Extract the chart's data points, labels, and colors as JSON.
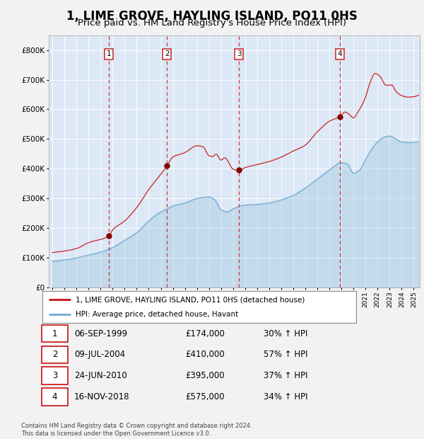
{
  "title": "1, LIME GROVE, HAYLING ISLAND, PO11 0HS",
  "subtitle": "Price paid vs. HM Land Registry's House Price Index (HPI)",
  "title_fontsize": 12,
  "subtitle_fontsize": 9.5,
  "yticks": [
    0,
    100000,
    200000,
    300000,
    400000,
    500000,
    600000,
    700000,
    800000
  ],
  "ytick_labels": [
    "£0",
    "£100K",
    "£200K",
    "£300K",
    "£400K",
    "£500K",
    "£600K",
    "£700K",
    "£800K"
  ],
  "xlim_start": 1994.7,
  "xlim_end": 2025.5,
  "ylim_min": 0,
  "ylim_max": 850000,
  "background_color": "#dce8f5",
  "fig_bg_color": "#f2f2f2",
  "red_line_color": "#cc2222",
  "blue_line_color": "#7ab0d4",
  "sale_marker_color": "#880000",
  "dashed_line_color": "#cc2222",
  "grid_color": "#ffffff",
  "sales": [
    {
      "date_year": 1999.67,
      "price": 174000,
      "label": "1"
    },
    {
      "date_year": 2004.52,
      "price": 410000,
      "label": "2"
    },
    {
      "date_year": 2010.48,
      "price": 395000,
      "label": "3"
    },
    {
      "date_year": 2018.87,
      "price": 575000,
      "label": "4"
    }
  ],
  "legend_entries": [
    "1, LIME GROVE, HAYLING ISLAND, PO11 0HS (detached house)",
    "HPI: Average price, detached house, Havant"
  ],
  "table_rows": [
    {
      "num": "1",
      "date": "06-SEP-1999",
      "price": "£174,000",
      "change": "30% ↑ HPI"
    },
    {
      "num": "2",
      "date": "09-JUL-2004",
      "price": "£410,000",
      "change": "57% ↑ HPI"
    },
    {
      "num": "3",
      "date": "24-JUN-2010",
      "price": "£395,000",
      "change": "37% ↑ HPI"
    },
    {
      "num": "4",
      "date": "16-NOV-2018",
      "price": "£575,000",
      "change": "34% ↑ HPI"
    }
  ],
  "footer": "Contains HM Land Registry data © Crown copyright and database right 2024.\nThis data is licensed under the Open Government Licence v3.0.",
  "hpi_waypoints_x": [
    1995,
    1996,
    1997,
    1998,
    1999,
    2000,
    2001,
    2002,
    2003,
    2004,
    2004.5,
    2005,
    2006,
    2007,
    2008,
    2008.5,
    2009,
    2009.5,
    2010,
    2011,
    2012,
    2013,
    2014,
    2015,
    2016,
    2017,
    2018,
    2019,
    2019.5,
    2020,
    2020.5,
    2021,
    2021.5,
    2022,
    2022.5,
    2023,
    2023.5,
    2024,
    2024.5,
    2025.3
  ],
  "hpi_waypoints_y": [
    88000,
    93000,
    100000,
    110000,
    120000,
    135000,
    160000,
    185000,
    225000,
    255000,
    265000,
    275000,
    285000,
    300000,
    305000,
    295000,
    262000,
    255000,
    265000,
    278000,
    280000,
    285000,
    295000,
    310000,
    335000,
    365000,
    395000,
    420000,
    415000,
    385000,
    395000,
    430000,
    465000,
    490000,
    505000,
    510000,
    500000,
    490000,
    488000,
    490000
  ],
  "prop_waypoints_x": [
    1995,
    1996,
    1997,
    1998,
    1999.67,
    2000,
    2001,
    2002,
    2003,
    2004.52,
    2005,
    2006,
    2007,
    2007.5,
    2008,
    2008.3,
    2008.6,
    2009,
    2009.3,
    2010.0,
    2010.48,
    2011,
    2012,
    2013,
    2014,
    2015,
    2016,
    2017,
    2018,
    2018.87,
    2019.3,
    2019.7,
    2020,
    2020.3,
    2021,
    2021.3,
    2021.8,
    2022.2,
    2022.7,
    2023.2,
    2023.5,
    2024,
    2024.5,
    2025.3
  ],
  "prop_waypoints_y": [
    118000,
    123000,
    132000,
    152000,
    174000,
    195000,
    225000,
    270000,
    330000,
    410000,
    440000,
    455000,
    478000,
    475000,
    445000,
    442000,
    450000,
    430000,
    438000,
    400000,
    395000,
    405000,
    415000,
    425000,
    440000,
    460000,
    480000,
    525000,
    560000,
    575000,
    590000,
    580000,
    570000,
    585000,
    640000,
    680000,
    720000,
    710000,
    680000,
    680000,
    660000,
    645000,
    640000,
    645000
  ]
}
